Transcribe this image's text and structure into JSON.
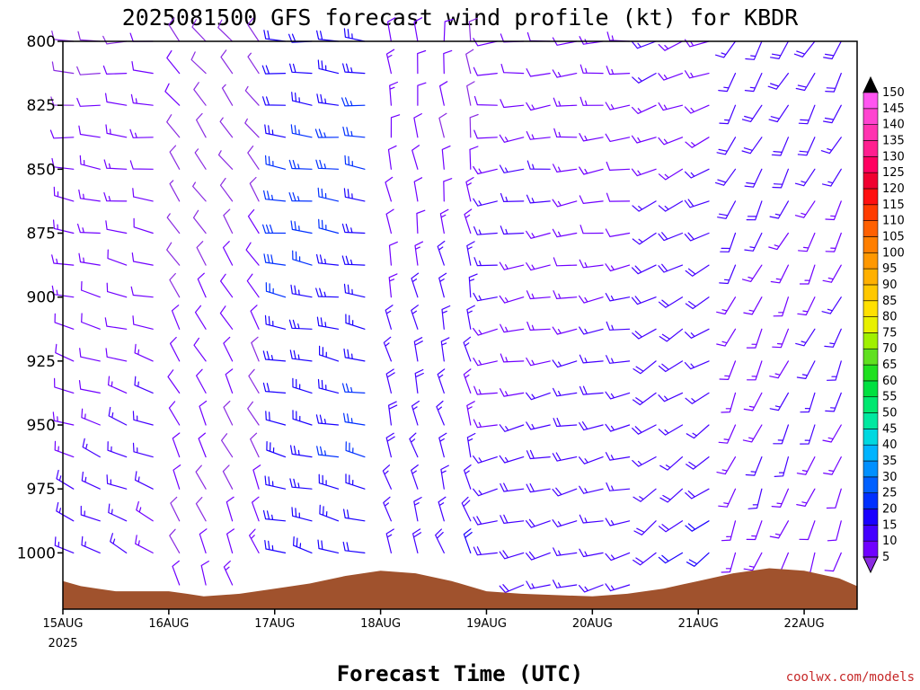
{
  "chart_data": {
    "type": "wind-barb time-height profile",
    "title": "2025081500 GFS forecast wind profile (kt) for KBDR",
    "xlabel": "Forecast Time (UTC)",
    "x_ticks": [
      "15AUG",
      "16AUG",
      "17AUG",
      "18AUG",
      "19AUG",
      "20AUG",
      "21AUG",
      "22AUG"
    ],
    "x_year": "2025",
    "x_range_days": [
      0,
      7.5
    ],
    "y_ticks": [
      800,
      825,
      850,
      875,
      900,
      925,
      950,
      975,
      1000
    ],
    "ylim_hpa": [
      800,
      1022
    ],
    "y_axis": "pressure (hPa), increasing downward",
    "colorbar": {
      "levels": [
        5,
        10,
        15,
        20,
        25,
        30,
        35,
        40,
        45,
        50,
        55,
        60,
        65,
        70,
        75,
        80,
        85,
        90,
        95,
        100,
        105,
        110,
        115,
        120,
        125,
        130,
        135,
        140,
        145,
        150
      ],
      "colors": [
        "#8a2be2",
        "#7000ff",
        "#4400ff",
        "#1a00ff",
        "#0030ff",
        "#0060ff",
        "#0090ff",
        "#00b4ff",
        "#00d8e0",
        "#00e8a0",
        "#00e870",
        "#00e040",
        "#20e020",
        "#60e020",
        "#a0f000",
        "#e8f000",
        "#ffe000",
        "#ffc800",
        "#ffb000",
        "#ff9800",
        "#ff7f00",
        "#ff6000",
        "#ff3c00",
        "#ff1010",
        "#f00030",
        "#ff0060",
        "#ff1f8f",
        "#ff33b0",
        "#ff44d0",
        "#ff55f0"
      ],
      "under_color": "#8a2be2",
      "over_color": "#000000"
    },
    "surface_pressure_hpa": [
      [
        0,
        1011
      ],
      [
        0.17,
        1013
      ],
      [
        0.33,
        1014
      ],
      [
        0.5,
        1015
      ],
      [
        1.0,
        1015
      ],
      [
        1.17,
        1016
      ],
      [
        1.33,
        1017
      ],
      [
        1.67,
        1016
      ],
      [
        2.0,
        1014
      ],
      [
        2.33,
        1012
      ],
      [
        2.67,
        1009
      ],
      [
        3.0,
        1007
      ],
      [
        3.33,
        1008
      ],
      [
        3.67,
        1011
      ],
      [
        4.0,
        1015
      ],
      [
        4.33,
        1016
      ],
      [
        5.0,
        1017
      ],
      [
        5.33,
        1016
      ],
      [
        5.67,
        1014
      ],
      [
        6.0,
        1011
      ],
      [
        6.33,
        1008
      ],
      [
        6.67,
        1006
      ],
      [
        7.0,
        1007
      ],
      [
        7.33,
        1010
      ],
      [
        7.5,
        1013
      ]
    ],
    "surface_color": "#a0522d",
    "wind_profile_note": "barbs every 6 h; speed in kt, direction toward which barb shaft points is the wind source",
    "wind_direction_profiles": {
      "day_0_2": "west to northwest, 10-20 kt",
      "day_2_3": "west, 15-25 kt strongest 1000-850 hPa",
      "day_3_4": "north to northwest, 10-25 kt",
      "day_4_6": "west-southwest, 10-20 kt",
      "day_6_7.5": "south-southwest, 10-20 kt"
    }
  },
  "credit": "coolwx.com/models"
}
